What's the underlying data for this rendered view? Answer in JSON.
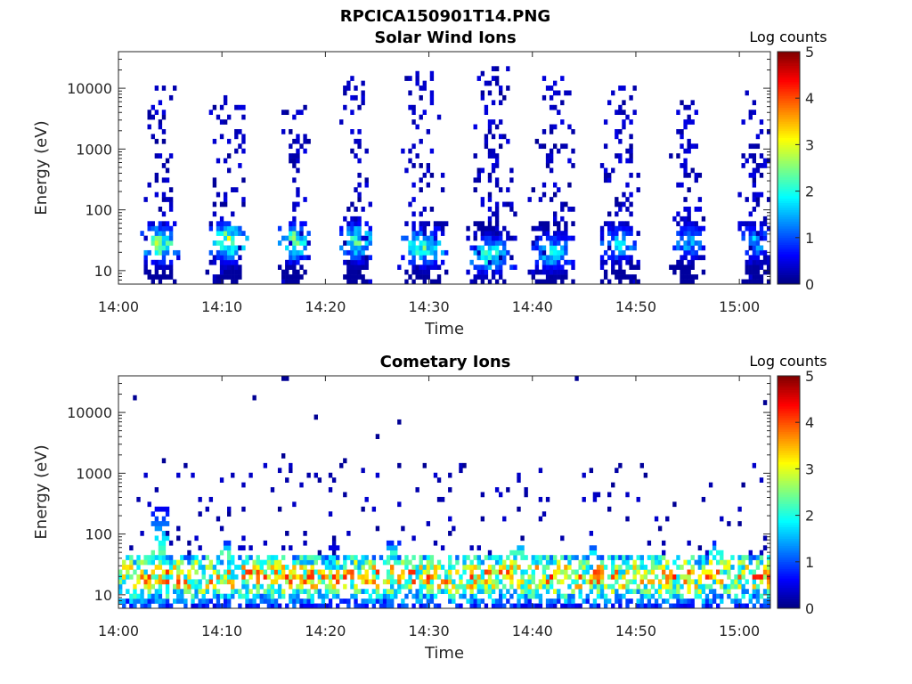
{
  "figure_title": "RPCICA150901T14.PNG",
  "chart_data": [
    {
      "type": "heatmap",
      "title": "Solar Wind Ions",
      "xlabel": "Time",
      "ylabel": "Energy (eV)",
      "x_tick_labels": [
        "14:00",
        "14:10",
        "14:20",
        "14:30",
        "14:40",
        "14:50",
        "15:00"
      ],
      "x_range_minutes": [
        0,
        63
      ],
      "y_scale": "log",
      "y_tick_labels": [
        "10",
        "100",
        "1000",
        "10000"
      ],
      "y_range": [
        6,
        40000
      ],
      "colorbar": {
        "title": "Log counts",
        "range": [
          0,
          5
        ],
        "tick_labels": [
          "0",
          "1",
          "2",
          "3",
          "4",
          "5"
        ],
        "colormap": "jet"
      },
      "bursts": [
        {
          "center_min": 4.0,
          "width_min": 2.6,
          "low_core_max": 2.7,
          "low_core_energy": 28,
          "upper_energy": 12000
        },
        {
          "center_min": 10.5,
          "width_min": 2.6,
          "low_core_max": 2.9,
          "low_core_energy": 30,
          "upper_energy": 8000
        },
        {
          "center_min": 17.0,
          "width_min": 2.2,
          "low_core_max": 2.8,
          "low_core_energy": 30,
          "upper_energy": 6000
        },
        {
          "center_min": 23.0,
          "width_min": 2.4,
          "low_core_max": 2.4,
          "low_core_energy": 30,
          "upper_energy": 15000
        },
        {
          "center_min": 29.5,
          "width_min": 3.2,
          "low_core_max": 2.4,
          "low_core_energy": 25,
          "upper_energy": 20000
        },
        {
          "center_min": 36.0,
          "width_min": 3.4,
          "low_core_max": 2.2,
          "low_core_energy": 18,
          "upper_energy": 25000
        },
        {
          "center_min": 42.0,
          "width_min": 3.2,
          "low_core_max": 1.8,
          "low_core_energy": 20,
          "upper_energy": 15000
        },
        {
          "center_min": 48.5,
          "width_min": 2.8,
          "low_core_max": 1.8,
          "low_core_energy": 28,
          "upper_energy": 12000
        },
        {
          "center_min": 55.0,
          "width_min": 2.4,
          "low_core_max": 1.6,
          "low_core_energy": 30,
          "upper_energy": 8000
        },
        {
          "center_min": 61.5,
          "width_min": 2.4,
          "low_core_max": 1.7,
          "low_core_energy": 30,
          "upper_energy": 10000
        }
      ]
    },
    {
      "type": "heatmap",
      "title": "Cometary Ions",
      "xlabel": "Time",
      "ylabel": "Energy (eV)",
      "x_tick_labels": [
        "14:00",
        "14:10",
        "14:20",
        "14:30",
        "14:40",
        "14:50",
        "15:00"
      ],
      "x_range_minutes": [
        0,
        63
      ],
      "y_scale": "log",
      "y_tick_labels": [
        "10",
        "100",
        "1000",
        "10000"
      ],
      "y_range": [
        6,
        40000
      ],
      "colorbar": {
        "title": "Log counts",
        "range": [
          0,
          5
        ],
        "tick_labels": [
          "0",
          "1",
          "2",
          "3",
          "4",
          "5"
        ],
        "colormap": "jet"
      },
      "band": {
        "energy_low": 6,
        "energy_high": 45,
        "peak_energy": 20,
        "typical_max": 3.6
      },
      "spikes": [
        {
          "center_min": 4.2,
          "peak_energy": 300,
          "max": 3.4
        },
        {
          "center_min": 10.5,
          "peak_energy": 80,
          "max": 3.8
        },
        {
          "center_min": 20.5,
          "peak_energy": 60,
          "max": 3.8
        },
        {
          "center_min": 26.5,
          "peak_energy": 80,
          "max": 3.4
        },
        {
          "center_min": 38.5,
          "peak_energy": 80,
          "max": 3.6
        },
        {
          "center_min": 45.5,
          "peak_energy": 70,
          "max": 3.0
        },
        {
          "center_min": 57.5,
          "peak_energy": 80,
          "max": 3.2
        }
      ]
    }
  ]
}
